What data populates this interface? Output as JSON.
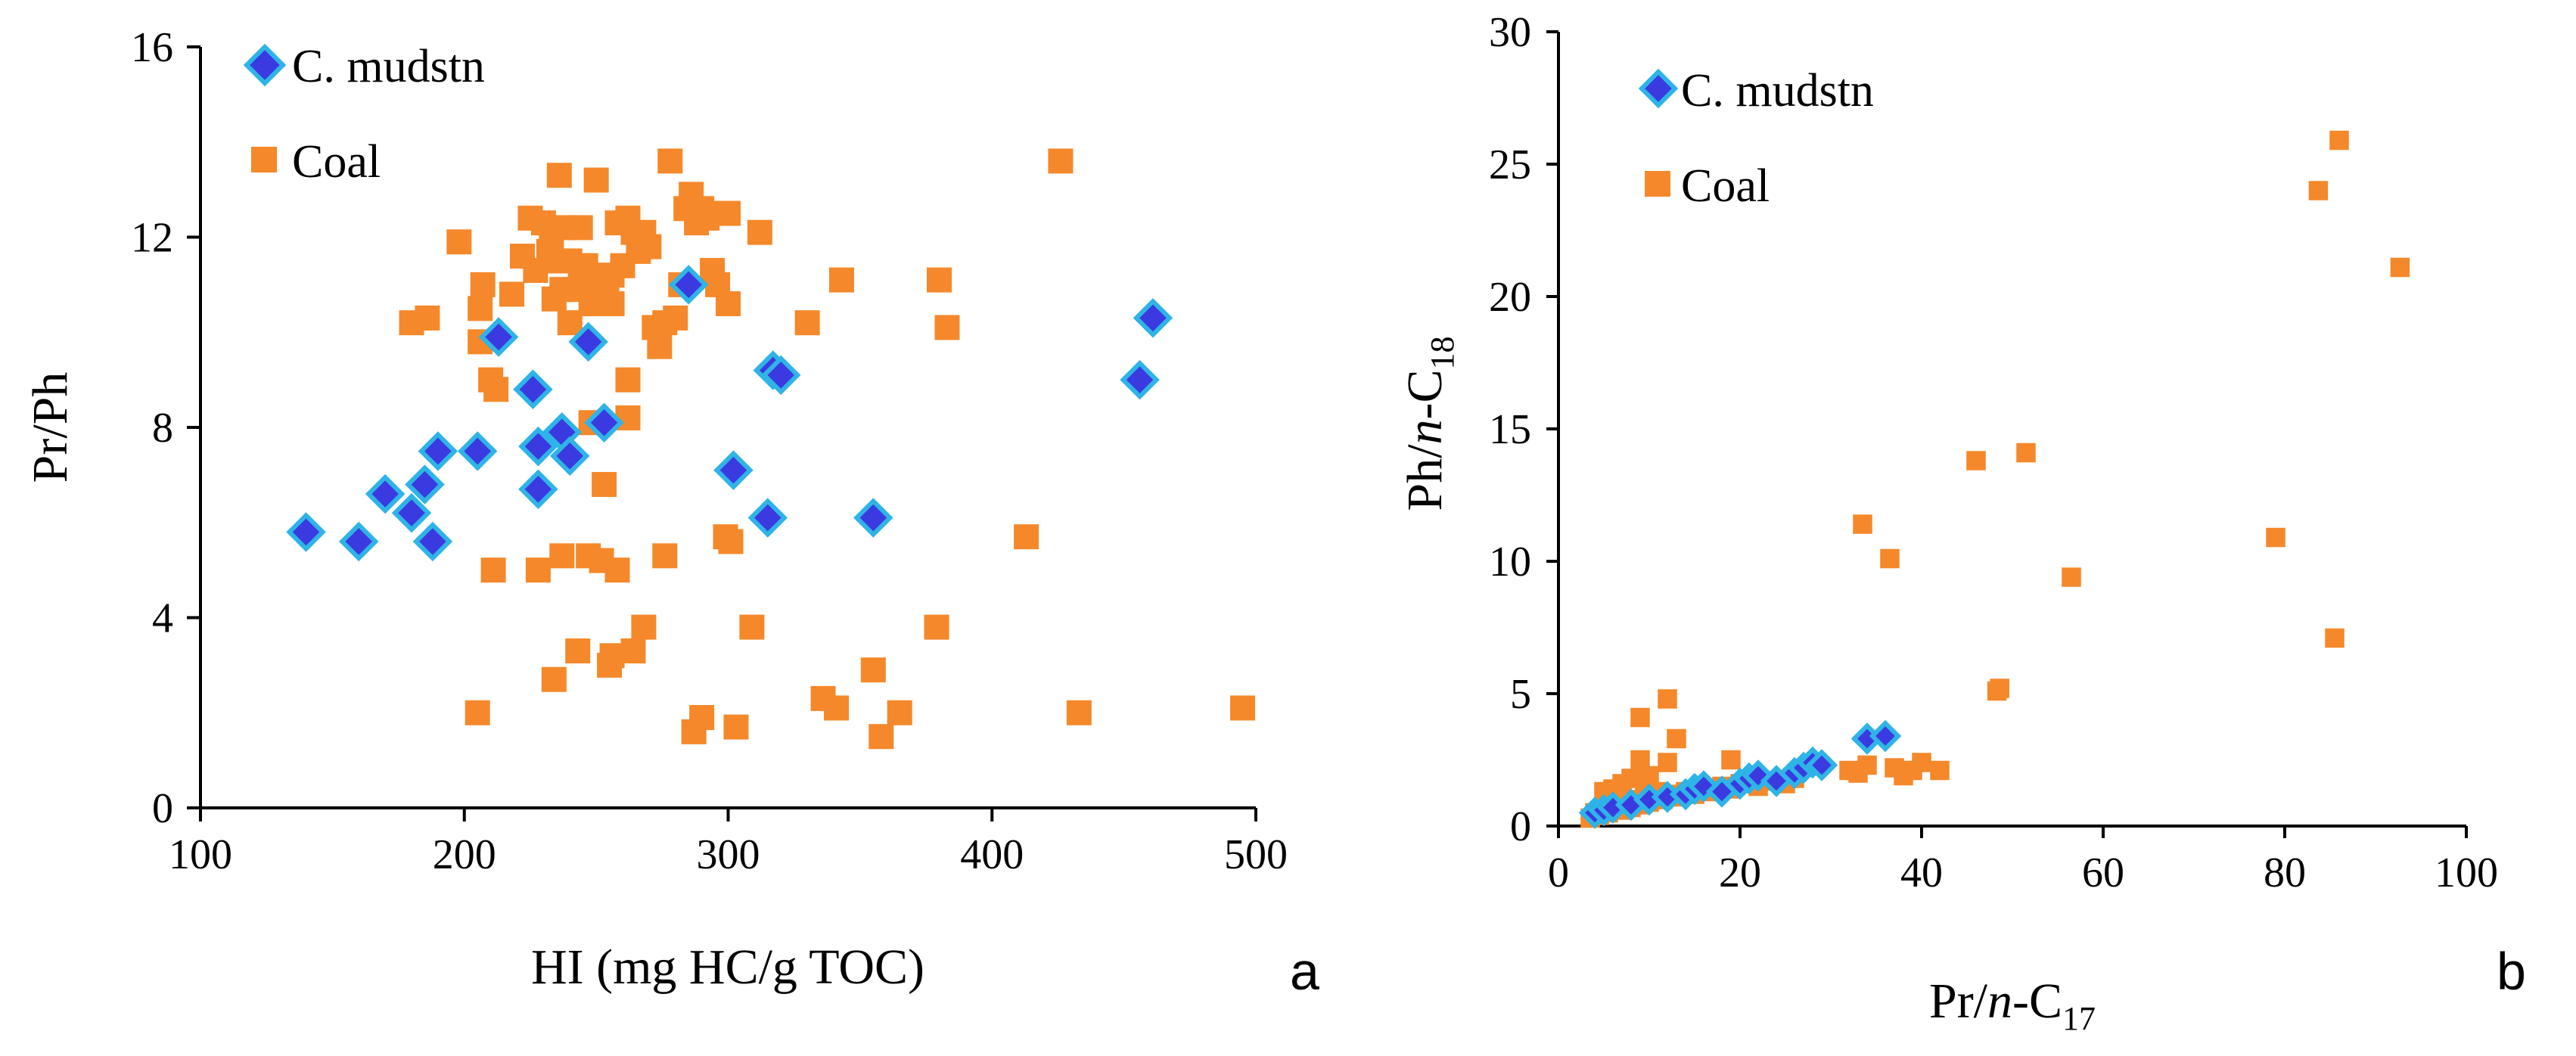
{
  "colors": {
    "mudstone_fill": "#3a3ae0",
    "mudstone_edge": "#2eb4e6",
    "coal": "#f5882a"
  },
  "chart_data": [
    {
      "type": "scatter",
      "panel_label": "a",
      "xlabel": "HI (mg HC/g TOC)",
      "ylabel": "Pr/Ph",
      "xlim": [
        100,
        500
      ],
      "ylim": [
        0,
        16
      ],
      "xticks": [
        100,
        200,
        300,
        400,
        500
      ],
      "yticks": [
        0,
        4,
        8,
        12,
        16
      ],
      "grid": false,
      "legend_position": "top-left",
      "series": [
        {
          "name": "C. mudstn",
          "marker": "diamond",
          "x": [
            140,
            160,
            170,
            180,
            185,
            188,
            190,
            205,
            213,
            226,
            228,
            228,
            237,
            240,
            247,
            253,
            285,
            302,
            315,
            317,
            320,
            355,
            456,
            461
          ],
          "y": [
            5.8,
            5.6,
            6.6,
            6.2,
            6.8,
            5.6,
            7.5,
            7.5,
            9.9,
            8.8,
            7.6,
            6.7,
            7.9,
            7.4,
            9.8,
            8.1,
            11.0,
            7.1,
            6.1,
            9.2,
            9.1,
            6.1,
            9.0,
            10.3
          ]
        },
        {
          "name": "Coal",
          "marker": "square",
          "x": [
            180,
            186,
            198,
            206,
            207,
            206,
            210,
            212,
            218,
            222,
            225,
            227,
            230,
            232,
            234,
            236,
            238,
            240,
            242,
            244,
            246,
            248,
            250,
            252,
            254,
            256,
            258,
            260,
            262,
            264,
            266,
            268,
            270,
            272,
            274,
            276,
            278,
            280,
            282,
            284,
            286,
            288,
            290,
            292,
            294,
            296,
            298,
            300,
            233,
            236,
            249,
            256,
            240,
            244,
            237,
            253,
            248,
            262,
            262,
            300,
            312,
            330,
            343,
            380,
            383,
            301,
            299,
            211,
            228,
            237,
            247,
            252,
            258,
            276,
            205,
            234,
            243,
            255,
            256,
            264,
            268,
            287,
            290,
            303,
            309,
            336,
            341,
            355,
            358,
            365,
            379,
            413,
            426,
            433,
            495
          ],
          "y": [
            10.2,
            10.3,
            11.9,
            10.5,
            11.0,
            9.8,
            9.0,
            8.8,
            10.8,
            11.6,
            12.4,
            11.3,
            12.3,
            11.7,
            10.7,
            13.3,
            12.2,
            11.5,
            10.9,
            12.2,
            11.4,
            10.6,
            13.2,
            11.2,
            10.8,
            10.6,
            12.3,
            11.4,
            12.4,
            12.1,
            11.7,
            12.1,
            11.8,
            10.1,
            9.7,
            10.2,
            13.6,
            10.3,
            11.0,
            12.6,
            12.9,
            12.3,
            12.6,
            12.4,
            11.3,
            11.0,
            12.5,
            10.6,
            11.8,
            11.5,
            11.0,
            11.2,
            10.2,
            11.4,
            10.9,
            6.8,
            8.1,
            8.2,
            9.0,
            12.5,
            12.1,
            10.2,
            11.1,
            11.1,
            10.1,
            5.6,
            5.7,
            5.0,
            5.0,
            5.3,
            5.3,
            5.2,
            5.0,
            5.3,
            2.0,
            2.7,
            3.3,
            3.0,
            3.2,
            3.3,
            3.8,
            1.6,
            1.9,
            1.7,
            3.8,
            2.3,
            2.1,
            2.9,
            1.5,
            2.0,
            3.8,
            5.7,
            13.6,
            2.0,
            2.1
          ]
        }
      ]
    },
    {
      "type": "scatter",
      "panel_label": "b",
      "xlabel_parts": [
        "Pr/",
        "n",
        "-C",
        "17"
      ],
      "ylabel_parts": [
        "Ph/",
        "n",
        "-C",
        "18"
      ],
      "xlim": [
        0,
        100
      ],
      "ylim": [
        0,
        30
      ],
      "xticks": [
        0,
        20,
        40,
        60,
        80,
        100
      ],
      "yticks": [
        0,
        5,
        10,
        15,
        20,
        25,
        30
      ],
      "grid": false,
      "legend_position": "top-left",
      "series": [
        {
          "name": "C. mudstn",
          "marker": "diamond",
          "x": [
            4,
            5,
            6,
            8,
            10,
            12,
            14,
            15,
            16,
            18,
            20,
            21,
            22,
            24,
            26,
            27,
            28,
            29,
            34,
            36
          ],
          "y": [
            0.5,
            0.6,
            0.7,
            0.8,
            1.0,
            1.1,
            1.2,
            1.4,
            1.5,
            1.3,
            1.6,
            1.8,
            1.9,
            1.7,
            2.0,
            2.2,
            2.4,
            2.3,
            3.3,
            3.4
          ]
        },
        {
          "name": "Coal",
          "marker": "square",
          "x": [
            3.5,
            4,
            4.5,
            5,
            5.5,
            6,
            6.5,
            7,
            7.5,
            8,
            8.5,
            9,
            9.5,
            10,
            10.5,
            11,
            11.5,
            12,
            13,
            14,
            15,
            16,
            17,
            18,
            19,
            20,
            22,
            24,
            25,
            26,
            5,
            6,
            7,
            8,
            9,
            10,
            12,
            13,
            9,
            19,
            12,
            32,
            33,
            34,
            37,
            38,
            39,
            40,
            42,
            33.5,
            36.5,
            46,
            51.5,
            56.5,
            48.3,
            48.6,
            79,
            83.7,
            85.5,
            86,
            92.7
          ],
          "y": [
            0.3,
            0.5,
            0.4,
            0.6,
            0.5,
            0.7,
            0.8,
            0.6,
            0.9,
            0.7,
            1.0,
            0.8,
            1.2,
            0.9,
            1.1,
            1.3,
            1.0,
            1.2,
            1.1,
            1.3,
            1.2,
            1.4,
            1.3,
            1.5,
            1.4,
            1.6,
            1.5,
            1.7,
            1.6,
            1.8,
            1.3,
            1.4,
            1.6,
            1.8,
            2.5,
            1.9,
            2.4,
            3.3,
            4.1,
            2.5,
            4.8,
            2.1,
            2.0,
            2.3,
            2.2,
            1.9,
            2.1,
            2.4,
            2.1,
            11.4,
            10.1,
            13.8,
            14.1,
            9.4,
            5.1,
            5.2,
            10.9,
            24.0,
            7.1,
            25.9,
            21.1
          ]
        }
      ]
    }
  ]
}
